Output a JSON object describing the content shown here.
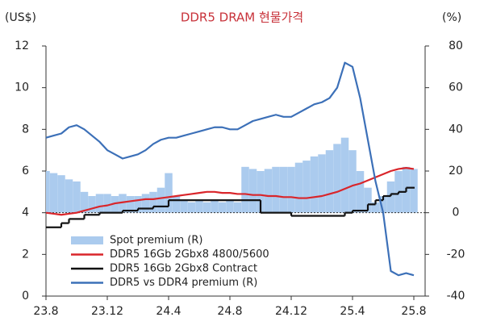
{
  "chart_data": {
    "type": "combo",
    "title": "DDR5 DRAM 현물가격",
    "title_color": "#c8323a",
    "y_label": "(US$)",
    "y2_label": "(%)",
    "categories": [
      "23.8",
      null,
      null,
      null,
      null,
      null,
      null,
      null,
      "23.12",
      null,
      null,
      null,
      null,
      null,
      null,
      null,
      "24.4",
      null,
      null,
      null,
      null,
      null,
      null,
      null,
      "24.8",
      null,
      null,
      null,
      null,
      null,
      null,
      null,
      "24.12",
      null,
      null,
      null,
      null,
      null,
      null,
      null,
      "25.4",
      null,
      null,
      null,
      null,
      null,
      null,
      null,
      "25.8"
    ],
    "ylim": [
      0,
      12
    ],
    "yticks": [
      0,
      2,
      4,
      6,
      8,
      10,
      12
    ],
    "y2lim": [
      -40,
      80
    ],
    "y2ticks": [
      -40,
      -20,
      0,
      20,
      40,
      60,
      80
    ],
    "legend": "lower left",
    "series": [
      {
        "name": "Spot premium (R)",
        "kind": "area",
        "axis": "y2",
        "color": "#abcbee",
        "values": [
          20,
          19,
          18,
          16,
          15,
          10,
          8,
          9,
          9,
          8,
          9,
          8,
          8,
          9,
          10,
          12,
          19,
          8,
          6,
          5,
          6,
          5,
          6,
          5,
          6,
          5,
          22,
          21,
          20,
          21,
          22,
          22,
          22,
          24,
          25,
          27,
          28,
          30,
          33,
          36,
          30,
          20,
          12,
          5,
          8,
          15,
          20,
          22,
          21
        ]
      },
      {
        "name": "DDR5 16Gb 2Gbx8 4800/5600",
        "kind": "line",
        "color": "#d9252a",
        "values": [
          4.0,
          3.95,
          3.9,
          3.95,
          4.0,
          4.1,
          4.2,
          4.3,
          4.35,
          4.45,
          4.5,
          4.55,
          4.6,
          4.65,
          4.65,
          4.7,
          4.75,
          4.8,
          4.85,
          4.9,
          4.95,
          5.0,
          5.0,
          4.95,
          4.95,
          4.9,
          4.9,
          4.85,
          4.85,
          4.8,
          4.8,
          4.75,
          4.75,
          4.7,
          4.7,
          4.75,
          4.8,
          4.9,
          5.0,
          5.15,
          5.3,
          5.4,
          5.55,
          5.7,
          5.85,
          6.0,
          6.1,
          6.15,
          6.1
        ]
      },
      {
        "name": "DDR5 16Gb 2Gbx8 Contract",
        "kind": "step",
        "color": "#111111",
        "values": [
          3.3,
          3.3,
          3.5,
          3.7,
          3.7,
          3.9,
          3.9,
          4.0,
          4.0,
          4.0,
          4.1,
          4.1,
          4.2,
          4.2,
          4.3,
          4.3,
          4.6,
          4.6,
          4.6,
          4.6,
          4.6,
          4.6,
          4.6,
          4.6,
          4.6,
          4.6,
          4.6,
          4.6,
          4.0,
          4.0,
          4.0,
          4.0,
          3.85,
          3.85,
          3.85,
          3.85,
          3.85,
          3.85,
          3.85,
          4.0,
          4.1,
          4.1,
          4.4,
          4.6,
          4.8,
          4.9,
          5.0,
          5.2,
          5.2
        ]
      },
      {
        "name": "DDR5 vs DDR4 premium (R)",
        "kind": "line",
        "axis": "y2",
        "color": "#3c70b8",
        "values": [
          36,
          37,
          38,
          41,
          42,
          40,
          37,
          34,
          30,
          28,
          26,
          27,
          28,
          30,
          33,
          35,
          36,
          36,
          37,
          38,
          39,
          40,
          41,
          41,
          40,
          40,
          42,
          44,
          45,
          46,
          47,
          46,
          46,
          48,
          50,
          52,
          53,
          55,
          60,
          72,
          70,
          55,
          35,
          15,
          0,
          -28,
          -30,
          -29,
          -30
        ]
      }
    ]
  }
}
